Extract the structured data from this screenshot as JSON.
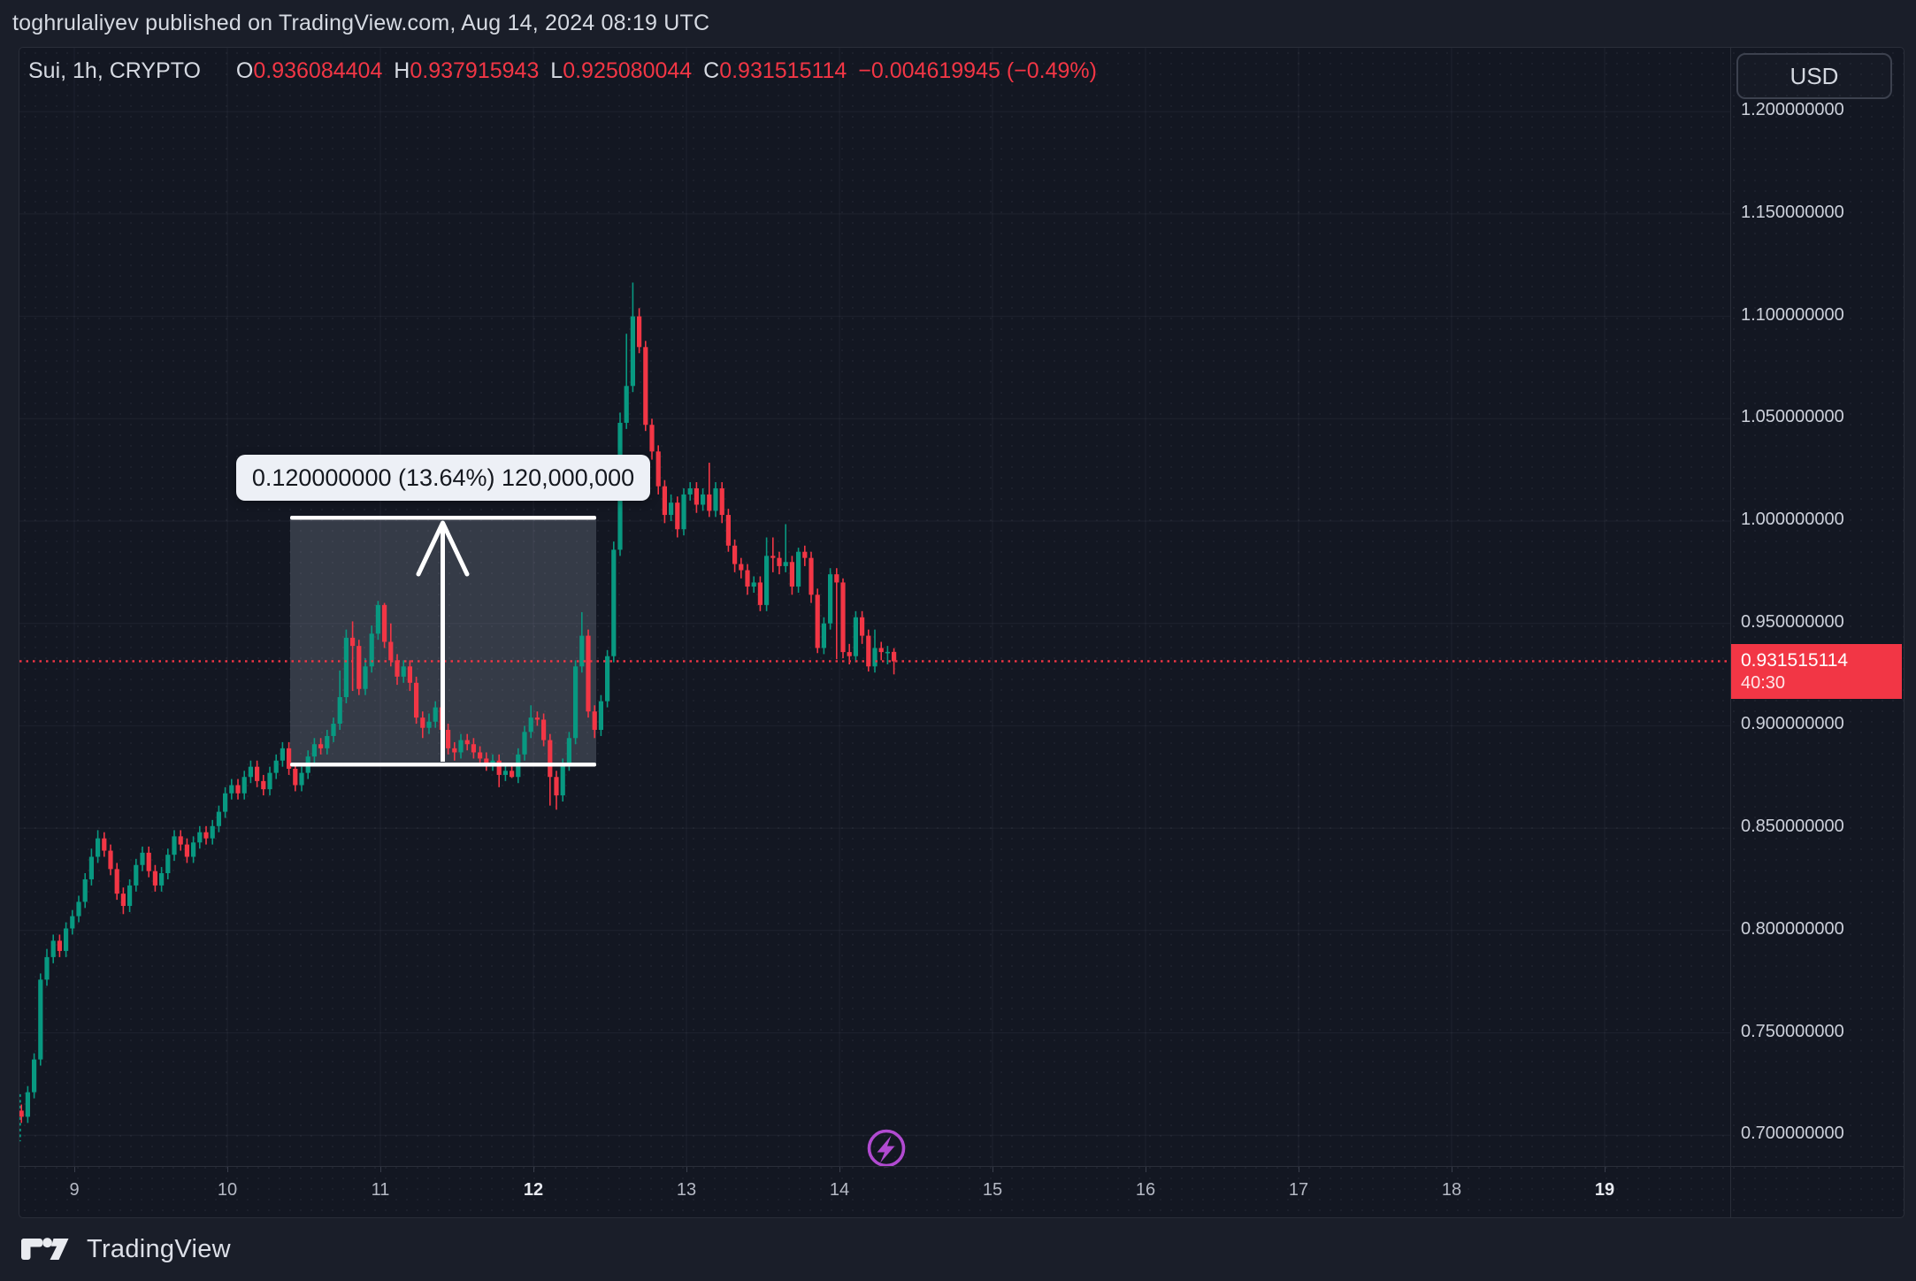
{
  "header": {
    "published_line": "toghrulaliyev published on TradingView.com, Aug 14, 2024 08:19 UTC"
  },
  "symbol_row": {
    "symbol": "Sui, 1h, CRYPTO",
    "o_label": "O",
    "o_value": "0.936084404",
    "h_label": "H",
    "h_value": "0.937915943",
    "l_label": "L",
    "l_value": "0.925080044",
    "c_label": "C",
    "c_value": "0.931515114",
    "change": "−0.004619945 (−0.49%)"
  },
  "currency_button": {
    "label": "USD"
  },
  "price_axis": {
    "labels": [
      "1.200000000",
      "1.150000000",
      "1.100000000",
      "1.050000000",
      "1.000000000",
      "0.950000000",
      "0.900000000",
      "0.850000000",
      "0.800000000",
      "0.750000000",
      "0.700000000"
    ],
    "current_price": "0.931515114",
    "countdown": "40:30"
  },
  "time_axis": {
    "labels": [
      {
        "t": "9",
        "b": false
      },
      {
        "t": "10",
        "b": false
      },
      {
        "t": "11",
        "b": false
      },
      {
        "t": "12",
        "b": true
      },
      {
        "t": "13",
        "b": false
      },
      {
        "t": "14",
        "b": false
      },
      {
        "t": "15",
        "b": false
      },
      {
        "t": "16",
        "b": false
      },
      {
        "t": "17",
        "b": false
      },
      {
        "t": "18",
        "b": false
      },
      {
        "t": "19",
        "b": true
      }
    ]
  },
  "measurement": {
    "tooltip": "0.120000000 (13.64%) 120,000,000",
    "price_change": 0.12,
    "percent": 13.64,
    "bars_value": "120,000,000",
    "from_price": 0.88,
    "to_price": 1.0
  },
  "footer": {
    "brand": "TradingView"
  },
  "colors": {
    "up": "#089981",
    "down": "#f23645",
    "current_line": "#f23645",
    "purple": "#b14ad1",
    "pane_bg": "#131722",
    "outer_bg": "#1a1e29"
  },
  "chart_data": {
    "type": "candlestick",
    "symbol": "SUI / USD",
    "interval": "1h",
    "title": "Sui, 1h, CRYPTO",
    "x_tick_labels": [
      "9",
      "10",
      "11",
      "12",
      "13",
      "14",
      "15",
      "16",
      "17",
      "18",
      "19"
    ],
    "x_tick_unit": "day of Aug 2024",
    "ylim": [
      0.675,
      1.215
    ],
    "y_ticks": [
      0.7,
      0.75,
      0.8,
      0.85,
      0.9,
      0.95,
      1.0,
      1.05,
      1.1,
      1.15,
      1.2
    ],
    "grid": true,
    "current_price": 0.931515114,
    "current_bar": {
      "open": 0.936084404,
      "high": 0.937915943,
      "low": 0.925080044,
      "close": 0.931515114,
      "change": -0.004619945,
      "change_pct": -0.49
    },
    "measurement_box": {
      "from_price": 0.88,
      "to_price": 1.0,
      "change": 0.12,
      "percent": 13.64,
      "volume": "120,000,000"
    },
    "candles_format": [
      "open",
      "high",
      "low",
      "close"
    ],
    "candles": [
      [
        0.705,
        0.715,
        0.697,
        0.712
      ],
      [
        0.712,
        0.715,
        0.706,
        0.709
      ],
      [
        0.709,
        0.724,
        0.706,
        0.721
      ],
      [
        0.721,
        0.74,
        0.718,
        0.737
      ],
      [
        0.737,
        0.779,
        0.734,
        0.776
      ],
      [
        0.776,
        0.791,
        0.773,
        0.787
      ],
      [
        0.787,
        0.798,
        0.784,
        0.795
      ],
      [
        0.795,
        0.798,
        0.787,
        0.79
      ],
      [
        0.79,
        0.804,
        0.787,
        0.801
      ],
      [
        0.801,
        0.81,
        0.798,
        0.807
      ],
      [
        0.807,
        0.817,
        0.804,
        0.814
      ],
      [
        0.814,
        0.828,
        0.811,
        0.825
      ],
      [
        0.825,
        0.84,
        0.822,
        0.836
      ],
      [
        0.836,
        0.849,
        0.833,
        0.845
      ],
      [
        0.845,
        0.848,
        0.836,
        0.839
      ],
      [
        0.839,
        0.842,
        0.827,
        0.83
      ],
      [
        0.83,
        0.833,
        0.815,
        0.818
      ],
      [
        0.818,
        0.821,
        0.808,
        0.812
      ],
      [
        0.812,
        0.825,
        0.809,
        0.822
      ],
      [
        0.822,
        0.835,
        0.819,
        0.832
      ],
      [
        0.832,
        0.841,
        0.829,
        0.838
      ],
      [
        0.838,
        0.841,
        0.826,
        0.829
      ],
      [
        0.829,
        0.832,
        0.819,
        0.822
      ],
      [
        0.822,
        0.831,
        0.819,
        0.828
      ],
      [
        0.828,
        0.84,
        0.825,
        0.837
      ],
      [
        0.837,
        0.849,
        0.834,
        0.846
      ],
      [
        0.846,
        0.849,
        0.839,
        0.842
      ],
      [
        0.842,
        0.845,
        0.833,
        0.836
      ],
      [
        0.836,
        0.846,
        0.833,
        0.843
      ],
      [
        0.843,
        0.851,
        0.84,
        0.848
      ],
      [
        0.848,
        0.851,
        0.842,
        0.845
      ],
      [
        0.845,
        0.854,
        0.842,
        0.851
      ],
      [
        0.851,
        0.861,
        0.848,
        0.858
      ],
      [
        0.858,
        0.87,
        0.855,
        0.867
      ],
      [
        0.867,
        0.874,
        0.864,
        0.871
      ],
      [
        0.871,
        0.874,
        0.864,
        0.867
      ],
      [
        0.867,
        0.878,
        0.864,
        0.875
      ],
      [
        0.875,
        0.883,
        0.872,
        0.88
      ],
      [
        0.88,
        0.883,
        0.87,
        0.873
      ],
      [
        0.873,
        0.876,
        0.866,
        0.869
      ],
      [
        0.869,
        0.88,
        0.866,
        0.877
      ],
      [
        0.877,
        0.886,
        0.874,
        0.883
      ],
      [
        0.883,
        0.892,
        0.88,
        0.889
      ],
      [
        0.889,
        0.892,
        0.876,
        0.879
      ],
      [
        0.879,
        0.882,
        0.868,
        0.871
      ],
      [
        0.871,
        0.88,
        0.868,
        0.877
      ],
      [
        0.877,
        0.888,
        0.874,
        0.885
      ],
      [
        0.885,
        0.894,
        0.882,
        0.891
      ],
      [
        0.891,
        0.894,
        0.886,
        0.889
      ],
      [
        0.889,
        0.898,
        0.886,
        0.895
      ],
      [
        0.895,
        0.904,
        0.892,
        0.901
      ],
      [
        0.901,
        0.927,
        0.898,
        0.914
      ],
      [
        0.914,
        0.947,
        0.911,
        0.943
      ],
      [
        0.943,
        0.951,
        0.917,
        0.939
      ],
      [
        0.939,
        0.942,
        0.915,
        0.918
      ],
      [
        0.918,
        0.933,
        0.915,
        0.929
      ],
      [
        0.929,
        0.949,
        0.926,
        0.945
      ],
      [
        0.945,
        0.961,
        0.942,
        0.959
      ],
      [
        0.959,
        0.96,
        0.938,
        0.941
      ],
      [
        0.941,
        0.95,
        0.929,
        0.932
      ],
      [
        0.932,
        0.935,
        0.92,
        0.924
      ],
      [
        0.924,
        0.932,
        0.921,
        0.929
      ],
      [
        0.929,
        0.932,
        0.917,
        0.921
      ],
      [
        0.921,
        0.924,
        0.901,
        0.904
      ],
      [
        0.904,
        0.907,
        0.894,
        0.899
      ],
      [
        0.899,
        0.906,
        0.896,
        0.902
      ],
      [
        0.902,
        0.912,
        0.899,
        0.909
      ],
      [
        0.909,
        0.912,
        0.895,
        0.898
      ],
      [
        0.898,
        0.901,
        0.886,
        0.889
      ],
      [
        0.889,
        0.892,
        0.883,
        0.887
      ],
      [
        0.887,
        0.896,
        0.884,
        0.893
      ],
      [
        0.893,
        0.896,
        0.888,
        0.891
      ],
      [
        0.891,
        0.894,
        0.884,
        0.887
      ],
      [
        0.887,
        0.89,
        0.881,
        0.884
      ],
      [
        0.884,
        0.887,
        0.878,
        0.881
      ],
      [
        0.881,
        0.886,
        0.878,
        0.883
      ],
      [
        0.883,
        0.886,
        0.87,
        0.876
      ],
      [
        0.876,
        0.881,
        0.873,
        0.878
      ],
      [
        0.878,
        0.881,
        0.8745,
        0.875
      ],
      [
        0.875,
        0.889,
        0.872,
        0.886
      ],
      [
        0.886,
        0.9,
        0.883,
        0.897
      ],
      [
        0.897,
        0.91,
        0.894,
        0.904
      ],
      [
        0.904,
        0.907,
        0.9,
        0.903
      ],
      [
        0.903,
        0.906,
        0.89,
        0.893
      ],
      [
        0.893,
        0.896,
        0.861,
        0.875
      ],
      [
        0.875,
        0.878,
        0.859,
        0.866
      ],
      [
        0.866,
        0.884,
        0.863,
        0.881
      ],
      [
        0.881,
        0.897,
        0.878,
        0.894
      ],
      [
        0.894,
        0.932,
        0.891,
        0.929
      ],
      [
        0.929,
        0.9555,
        0.926,
        0.944
      ],
      [
        0.944,
        0.947,
        0.904,
        0.907
      ],
      [
        0.907,
        0.91,
        0.894,
        0.898
      ],
      [
        0.898,
        0.915,
        0.895,
        0.912
      ],
      [
        0.912,
        0.937,
        0.909,
        0.934
      ],
      [
        0.934,
        0.99,
        0.931,
        0.986
      ],
      [
        0.986,
        1.053,
        0.983,
        1.048
      ],
      [
        1.048,
        1.0915,
        1.045,
        1.066
      ],
      [
        1.066,
        1.1165,
        1.063,
        1.1
      ],
      [
        1.1,
        1.104,
        1.082,
        1.085
      ],
      [
        1.085,
        1.088,
        1.044,
        1.047
      ],
      [
        1.047,
        1.05,
        1.03,
        1.034
      ],
      [
        1.034,
        1.037,
        1.013,
        1.017
      ],
      [
        1.017,
        1.02,
        0.999,
        1.003
      ],
      [
        1.003,
        1.013,
        1.0,
        1.009
      ],
      [
        1.009,
        1.012,
        0.992,
        0.996
      ],
      [
        0.996,
        1.016,
        0.993,
        1.013
      ],
      [
        1.013,
        1.019,
        1.01,
        1.016
      ],
      [
        1.016,
        1.019,
        1.004,
        1.008
      ],
      [
        1.008,
        1.016,
        1.005,
        1.013
      ],
      [
        1.013,
        1.0285,
        1.002,
        1.005
      ],
      [
        1.005,
        1.019,
        1.002,
        1.016
      ],
      [
        1.016,
        1.019,
        0.999,
        1.003
      ],
      [
        1.003,
        1.006,
        0.985,
        0.988
      ],
      [
        0.988,
        0.991,
        0.975,
        0.979
      ],
      [
        0.979,
        0.982,
        0.972,
        0.976
      ],
      [
        0.976,
        0.979,
        0.964,
        0.968
      ],
      [
        0.968,
        0.973,
        0.965,
        0.97
      ],
      [
        0.97,
        0.973,
        0.956,
        0.959
      ],
      [
        0.959,
        0.992,
        0.956,
        0.983
      ],
      [
        0.983,
        0.992,
        0.975,
        0.982
      ],
      [
        0.982,
        0.985,
        0.974,
        0.978
      ],
      [
        0.978,
        0.9985,
        0.975,
        0.98
      ],
      [
        0.98,
        0.983,
        0.964,
        0.968
      ],
      [
        0.968,
        0.987,
        0.965,
        0.985
      ],
      [
        0.985,
        0.988,
        0.978,
        0.982
      ],
      [
        0.982,
        0.985,
        0.96,
        0.964
      ],
      [
        0.964,
        0.967,
        0.9355,
        0.938
      ],
      [
        0.938,
        0.953,
        0.935,
        0.95
      ],
      [
        0.95,
        0.977,
        0.947,
        0.974
      ],
      [
        0.974,
        0.977,
        0.9325,
        0.97
      ],
      [
        0.97,
        0.972,
        0.933,
        0.936
      ],
      [
        0.936,
        0.94,
        0.93,
        0.934
      ],
      [
        0.934,
        0.956,
        0.931,
        0.953
      ],
      [
        0.953,
        0.956,
        0.94,
        0.944
      ],
      [
        0.944,
        0.947,
        0.9265,
        0.929
      ],
      [
        0.929,
        0.947,
        0.926,
        0.938
      ],
      [
        0.938,
        0.941,
        0.932,
        0.936
      ],
      [
        0.936,
        0.939,
        0.93,
        0.9361
      ],
      [
        0.9361,
        0.9379,
        0.9251,
        0.9315
      ]
    ]
  }
}
